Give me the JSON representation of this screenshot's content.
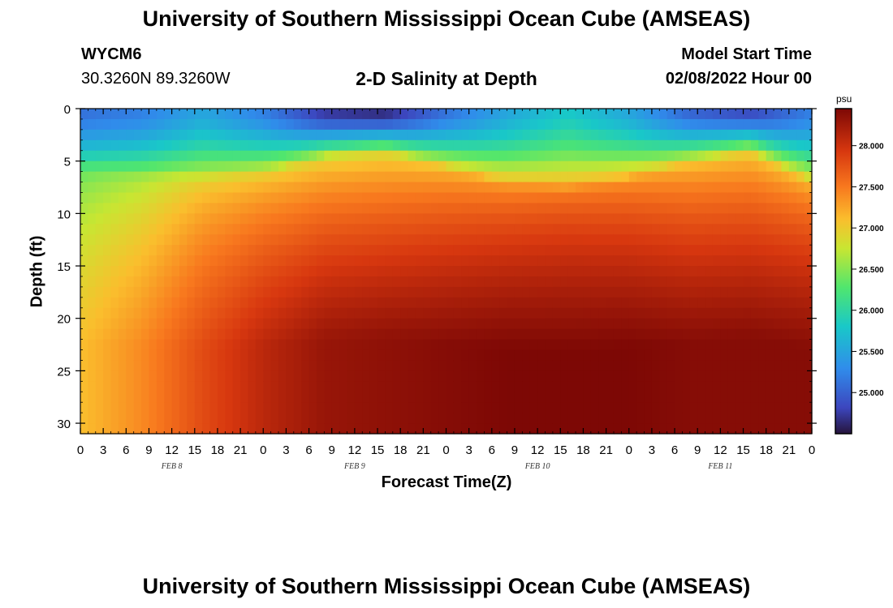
{
  "header": {
    "title": "University of Southern Mississippi Ocean Cube (AMSEAS)",
    "station": "WYCM6",
    "coordinates": "30.3260N  89.3260W",
    "plot_title": "2-D Salinity at Depth",
    "model_start_label": "Model Start Time",
    "model_start_value": "02/08/2022 Hour 00"
  },
  "footer": {
    "title": "University of Southern Mississippi Ocean Cube (AMSEAS)"
  },
  "chart_data": {
    "type": "heatmap",
    "title": "2-D Salinity at Depth",
    "xlabel": "Forecast Time(Z)",
    "ylabel": "Depth (ft)",
    "x_tick_labels": [
      "0",
      "3",
      "6",
      "9",
      "12",
      "15",
      "18",
      "21",
      "0",
      "3",
      "6",
      "9",
      "12",
      "15",
      "18",
      "21",
      "0",
      "3",
      "6",
      "9",
      "12",
      "15",
      "18",
      "21",
      "0",
      "3",
      "6",
      "9",
      "12",
      "15",
      "18",
      "21",
      "0"
    ],
    "x_day_labels": [
      "FEB 8",
      "FEB 9",
      "FEB 10",
      "FEB 11"
    ],
    "x_range_hours": [
      0,
      96
    ],
    "y_ticks": [
      0,
      5,
      10,
      15,
      20,
      25,
      30
    ],
    "y_range_ft": [
      0,
      31
    ],
    "colorbar": {
      "unit": "psu",
      "ticks": [
        "25.000",
        "25.500",
        "26.000",
        "26.500",
        "27.000",
        "27.500",
        "28.000"
      ],
      "range": [
        24.5,
        28.45
      ]
    },
    "surface_salinity_psu": [
      25.1,
      25.2,
      25.5,
      25.2,
      24.7,
      24.6,
      25.1,
      25.5,
      25.8,
      25.5,
      25.0,
      24.8,
      25.2
    ],
    "halocline_depth_ft": [
      5.5,
      6.0,
      6.5,
      6.0,
      4.5,
      4.0,
      5.5,
      7.0,
      7.5,
      6.5,
      5.0,
      4.0,
      7.0
    ],
    "bottom_salinity_psu": [
      27.1,
      27.4,
      27.8,
      28.1,
      28.3,
      28.35,
      28.4,
      28.45,
      28.45,
      28.45,
      28.4,
      28.4,
      28.4
    ],
    "profile_hours": [
      0,
      8,
      16,
      24,
      32,
      40,
      48,
      56,
      64,
      72,
      80,
      88,
      96
    ]
  }
}
